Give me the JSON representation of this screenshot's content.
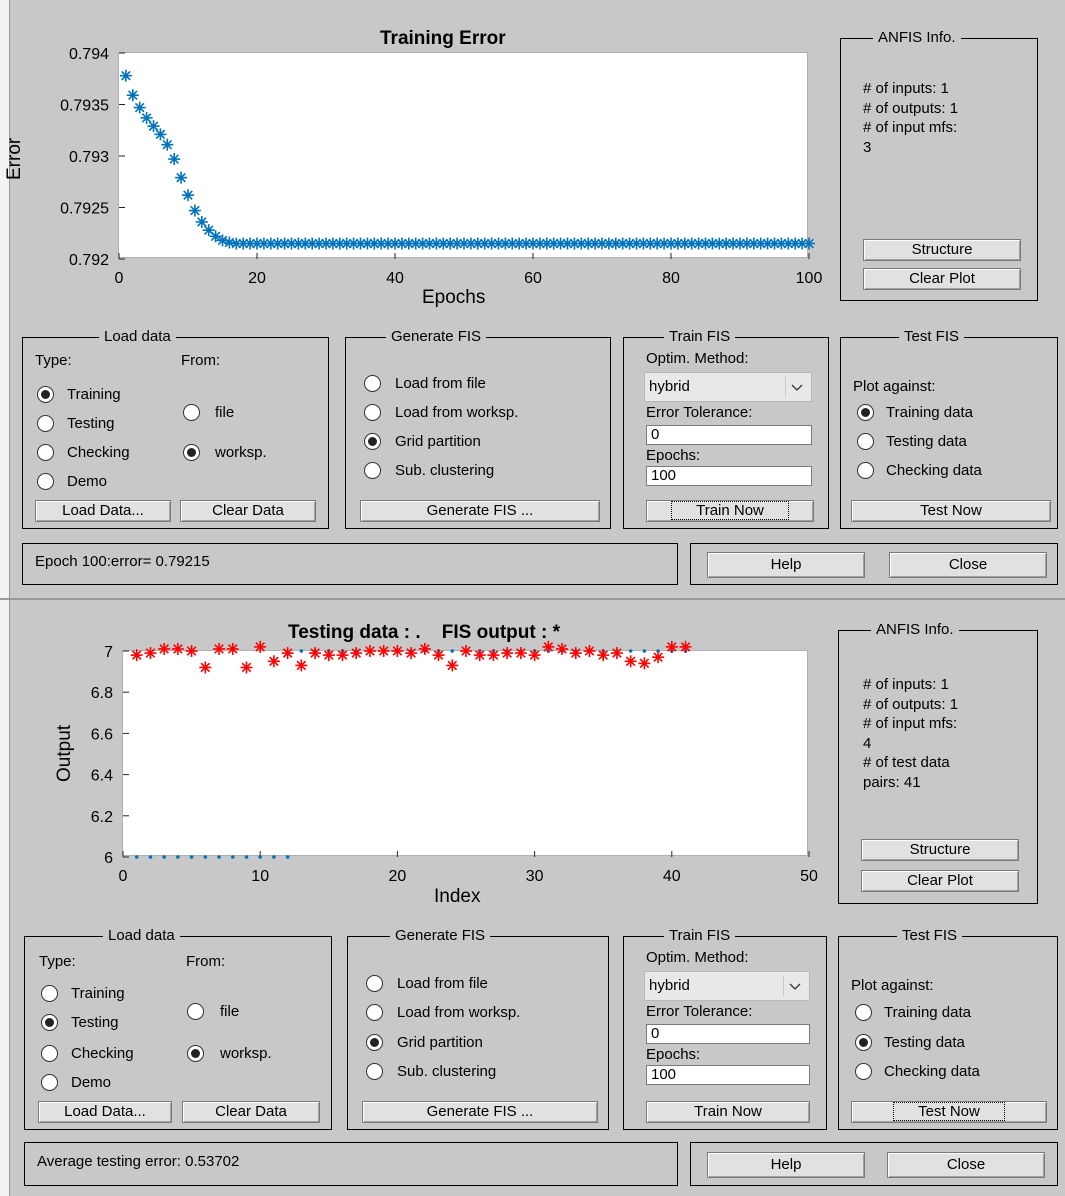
{
  "top": {
    "plot": {
      "title": "Training Error",
      "xlabel": "Epochs",
      "ylabel": "Error",
      "xticks": [
        "0",
        "20",
        "40",
        "60",
        "80",
        "100"
      ],
      "yticks": [
        "0.794",
        "0.7935",
        "0.793",
        "0.7925",
        "0.792"
      ]
    },
    "info": {
      "title": "ANFIS Info.",
      "lines": [
        "# of inputs: 1",
        "# of outputs: 1",
        "# of input mfs:",
        "3"
      ],
      "structure": "Structure",
      "clear_plot": "Clear Plot"
    },
    "load": {
      "title": "Load data",
      "type_label": "Type:",
      "from_label": "From:",
      "types": [
        "Training",
        "Testing",
        "Checking",
        "Demo"
      ],
      "type_selected": "Training",
      "from": [
        "file",
        "worksp."
      ],
      "from_selected": "worksp.",
      "load_btn": "Load Data...",
      "clear_btn": "Clear Data"
    },
    "gen": {
      "title": "Generate FIS",
      "options": [
        "Load from file",
        "Load from worksp.",
        "Grid partition",
        "Sub. clustering"
      ],
      "selected": "Grid partition",
      "btn": "Generate FIS ..."
    },
    "train": {
      "title": "Train FIS",
      "optim_label": "Optim. Method:",
      "optim_value": "hybrid",
      "tol_label": "Error Tolerance:",
      "tol_value": "0",
      "epochs_label": "Epochs:",
      "epochs_value": "100",
      "btn": "Train Now"
    },
    "test": {
      "title": "Test FIS",
      "plot_against": "Plot against:",
      "options": [
        "Training data",
        "Testing data",
        "Checking data"
      ],
      "selected": "Training data",
      "btn": "Test Now"
    },
    "status": "Epoch 100:error= 0.79215",
    "help": "Help",
    "close": "Close"
  },
  "bottom": {
    "plot": {
      "title": "Testing data : .    FIS output : *",
      "xlabel": "Index",
      "ylabel": "Output",
      "xticks": [
        "0",
        "10",
        "20",
        "30",
        "40",
        "50"
      ],
      "yticks": [
        "7",
        "6.8",
        "6.6",
        "6.4",
        "6.2",
        "6"
      ]
    },
    "info": {
      "title": "ANFIS Info.",
      "lines": [
        "# of inputs: 1",
        "# of outputs: 1",
        "# of input mfs:",
        "4",
        "# of test data",
        "pairs: 41"
      ],
      "structure": "Structure",
      "clear_plot": "Clear Plot"
    },
    "load": {
      "title": "Load data",
      "type_label": "Type:",
      "from_label": "From:",
      "types": [
        "Training",
        "Testing",
        "Checking",
        "Demo"
      ],
      "type_selected": "Testing",
      "from": [
        "file",
        "worksp."
      ],
      "from_selected": "worksp.",
      "load_btn": "Load Data...",
      "clear_btn": "Clear Data"
    },
    "gen": {
      "title": "Generate FIS",
      "options": [
        "Load from file",
        "Load from worksp.",
        "Grid partition",
        "Sub. clustering"
      ],
      "selected": "Grid partition",
      "btn": "Generate FIS ..."
    },
    "train": {
      "title": "Train FIS",
      "optim_label": "Optim. Method:",
      "optim_value": "hybrid",
      "tol_label": "Error Tolerance:",
      "tol_value": "0",
      "epochs_label": "Epochs:",
      "epochs_value": "100",
      "btn": "Train Now"
    },
    "test": {
      "title": "Test FIS",
      "plot_against": "Plot against:",
      "options": [
        "Training data",
        "Testing data",
        "Checking data"
      ],
      "selected": "Testing data",
      "btn": "Test Now"
    },
    "status": "Average testing error: 0.53702",
    "help": "Help",
    "close": "Close"
  },
  "chart_data": [
    {
      "type": "scatter",
      "title": "Training Error",
      "xlabel": "Epochs",
      "ylabel": "Error",
      "xlim": [
        0,
        100
      ],
      "ylim": [
        0.792,
        0.794
      ],
      "marker": "*",
      "color": "#0072bd",
      "series": [
        {
          "x": [
            1,
            2,
            3,
            4,
            5,
            6,
            7,
            8,
            9,
            10,
            11,
            12,
            13,
            14,
            15,
            16,
            17,
            18,
            19,
            20,
            21,
            22,
            23,
            24,
            25,
            26,
            27,
            28,
            29,
            30,
            31,
            32,
            33,
            34,
            35,
            36,
            37,
            38,
            39,
            40,
            41,
            42,
            43,
            44,
            45,
            46,
            47,
            48,
            49,
            50,
            51,
            52,
            53,
            54,
            55,
            56,
            57,
            58,
            59,
            60,
            61,
            62,
            63,
            64,
            65,
            66,
            67,
            68,
            69,
            70,
            71,
            72,
            73,
            74,
            75,
            76,
            77,
            78,
            79,
            80,
            81,
            82,
            83,
            84,
            85,
            86,
            87,
            88,
            89,
            90,
            91,
            92,
            93,
            94,
            95,
            96,
            97,
            98,
            99,
            100
          ],
          "y": [
            0.79378,
            0.79359,
            0.79347,
            0.79337,
            0.79329,
            0.79321,
            0.79311,
            0.79297,
            0.79279,
            0.79262,
            0.79247,
            0.79236,
            0.79228,
            0.79222,
            0.79218,
            0.79216,
            0.79215,
            0.79215,
            0.79215,
            0.79215,
            0.79215,
            0.79215,
            0.79215,
            0.79215,
            0.79215,
            0.79215,
            0.79215,
            0.79215,
            0.79215,
            0.79215,
            0.79215,
            0.79215,
            0.79215,
            0.79215,
            0.79215,
            0.79215,
            0.79215,
            0.79215,
            0.79215,
            0.79215,
            0.79215,
            0.79215,
            0.79215,
            0.79215,
            0.79215,
            0.79215,
            0.79215,
            0.79215,
            0.79215,
            0.79215,
            0.79215,
            0.79215,
            0.79215,
            0.79215,
            0.79215,
            0.79215,
            0.79215,
            0.79215,
            0.79215,
            0.79215,
            0.79215,
            0.79215,
            0.79215,
            0.79215,
            0.79215,
            0.79215,
            0.79215,
            0.79215,
            0.79215,
            0.79215,
            0.79215,
            0.79215,
            0.79215,
            0.79215,
            0.79215,
            0.79215,
            0.79215,
            0.79215,
            0.79215,
            0.79215,
            0.79215,
            0.79215,
            0.79215,
            0.79215,
            0.79215,
            0.79215,
            0.79215,
            0.79215,
            0.79215,
            0.79215,
            0.79215,
            0.79215,
            0.79215,
            0.79215,
            0.79215,
            0.79215,
            0.79215,
            0.79215,
            0.79215,
            0.79215
          ]
        }
      ]
    },
    {
      "type": "scatter",
      "title": "Testing data : .    FIS output : *",
      "xlabel": "Index",
      "ylabel": "Output",
      "xlim": [
        0,
        50
      ],
      "ylim": [
        6,
        7
      ],
      "series": [
        {
          "marker": ".",
          "color": "#0072bd",
          "x": [
            1,
            2,
            3,
            4,
            5,
            6,
            7,
            8,
            9,
            10,
            11,
            12,
            13,
            14,
            15,
            16,
            17,
            18,
            19,
            20,
            21,
            22,
            23,
            24,
            25,
            26,
            27,
            28,
            29,
            30,
            31,
            32,
            33,
            34,
            35,
            36,
            37,
            38,
            39,
            40,
            41
          ],
          "y": [
            6,
            6,
            6,
            6,
            6,
            6,
            6,
            6,
            6,
            6,
            6,
            6,
            7,
            7,
            7,
            7,
            7,
            7,
            7,
            7,
            7,
            7,
            7,
            7,
            7,
            7,
            7,
            7,
            7,
            7,
            7,
            7,
            7,
            7,
            7,
            7,
            7,
            7,
            7,
            7,
            7
          ]
        },
        {
          "marker": "*",
          "color": "#ff0000",
          "x": [
            1,
            2,
            3,
            4,
            5,
            6,
            7,
            8,
            9,
            10,
            11,
            12,
            13,
            14,
            15,
            16,
            17,
            18,
            19,
            20,
            21,
            22,
            23,
            24,
            25,
            26,
            27,
            28,
            29,
            30,
            31,
            32,
            33,
            34,
            35,
            36,
            37,
            38,
            39,
            40,
            41
          ],
          "y": [
            6.98,
            6.99,
            7.01,
            7.01,
            7.0,
            6.92,
            7.01,
            7.01,
            6.92,
            7.02,
            6.95,
            6.99,
            6.93,
            6.99,
            6.98,
            6.98,
            6.99,
            7.0,
            7.0,
            7.0,
            6.99,
            7.01,
            6.98,
            6.93,
            7.0,
            6.98,
            6.98,
            6.99,
            6.99,
            6.98,
            7.02,
            7.01,
            6.99,
            7.0,
            6.98,
            6.99,
            6.95,
            6.94,
            6.97,
            7.02,
            7.02
          ]
        }
      ]
    }
  ]
}
